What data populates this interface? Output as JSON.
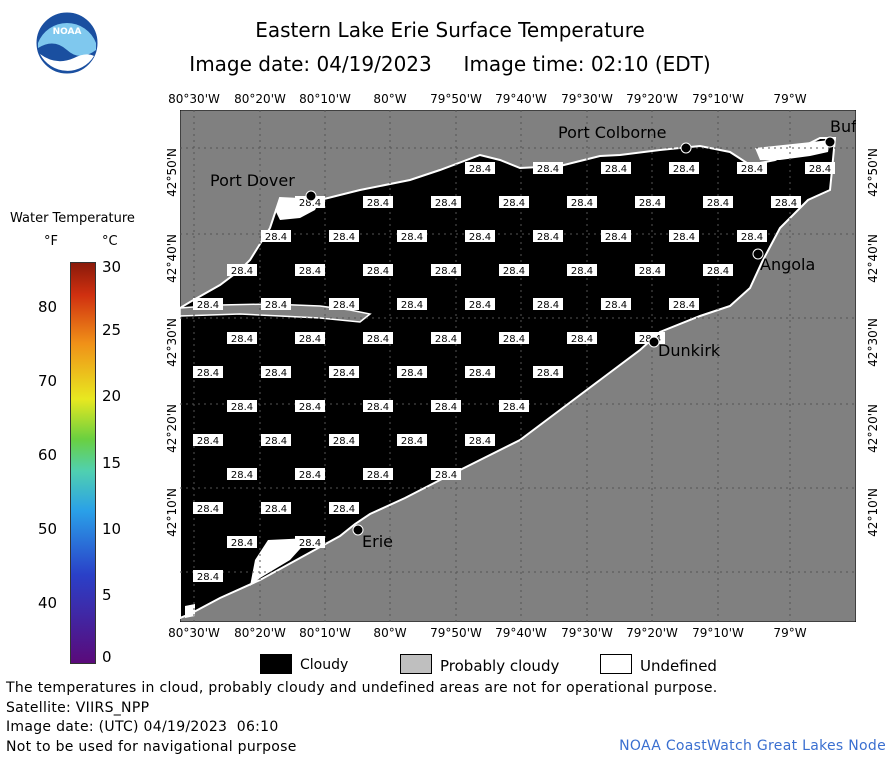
{
  "title": "Eastern Lake Erie Surface Temperature",
  "image_date_line": "Image date: 04/19/2023     Image time: 02:10 (EDT)",
  "logo_text": "NOAA",
  "lon_labels": [
    "80°30'W",
    "80°20'W",
    "80°10'W",
    "80°W",
    "79°50'W",
    "79°40'W",
    "79°30'W",
    "79°20'W",
    "79°10'W",
    "79°W"
  ],
  "lat_labels": [
    "42°50'N",
    "42°40'N",
    "42°30'N",
    "42°20'N",
    "42°10'N"
  ],
  "places": [
    "Port Colborne",
    "Port Dover",
    "Angola",
    "Dunkirk",
    "Erie",
    "Buf"
  ],
  "temp_label": "28.4",
  "colorbar": {
    "title": "Water Temperature",
    "unit_f": "°F",
    "unit_c": "°C",
    "f_labels": [
      "80",
      "70",
      "60",
      "50",
      "40"
    ],
    "c_labels": [
      "30",
      "25",
      "20",
      "15",
      "10",
      "5",
      "0"
    ]
  },
  "legend": {
    "cloudy": "Cloudy",
    "probably_cloudy": "Probably cloudy",
    "undefined": "Undefined"
  },
  "colors": {
    "cloudy": "#000000",
    "probably_cloudy": "#bfbfbf",
    "land": "#808080",
    "undefined": "#ffffff",
    "credit": "#3a6fd0"
  },
  "footer": {
    "disclaimer": "The temperatures in cloud, probably cloudy and undefined areas are not for operational purpose.",
    "satellite": "Satellite: VIIRS_NPP",
    "utc_date": "Image date: (UTC) 04/19/2023  06:10",
    "nav": "Not to be used for navigational purpose",
    "credit": "NOAA CoastWatch Great Lakes Node"
  }
}
